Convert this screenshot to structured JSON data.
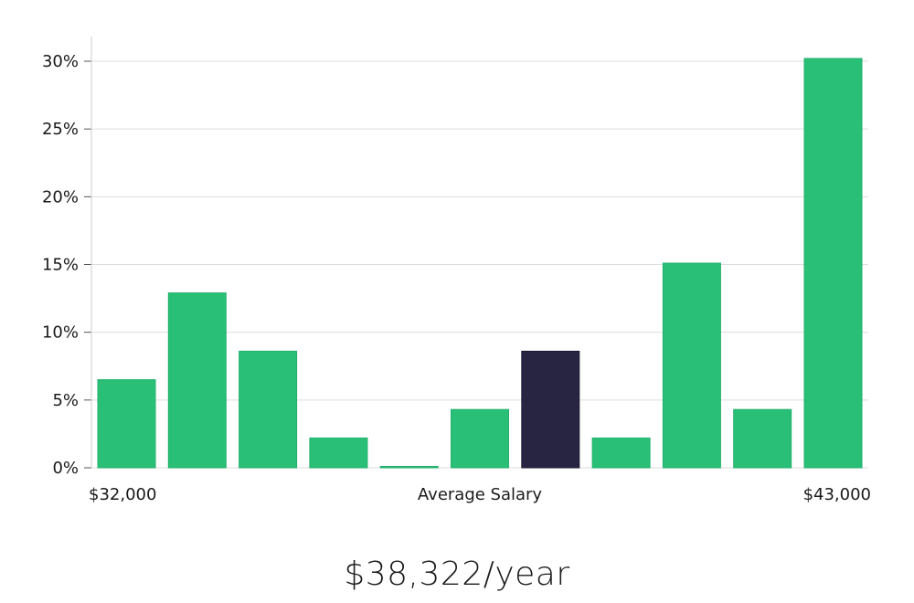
{
  "chart_data": {
    "type": "bar",
    "x_axis": {
      "left_label": "$32,000",
      "center_label": "Average Salary",
      "right_label": "$43,000"
    },
    "y_ticks": [
      "0%",
      "5%",
      "10%",
      "15%",
      "20%",
      "25%",
      "30%"
    ],
    "ylim": [
      0,
      31.8
    ],
    "values": [
      6.5,
      12.9,
      8.6,
      2.2,
      0.05,
      4.3,
      8.6,
      2.2,
      15.1,
      4.3,
      30.2
    ],
    "highlight_index": 6,
    "grid": true,
    "colors": {
      "bar": "#2abf77",
      "bar_edge": "#22b06c",
      "highlight": "#282543",
      "grid": "#dddddd",
      "axis": "#cccccc"
    }
  },
  "summary": {
    "salary_text": "$38,322/year"
  }
}
